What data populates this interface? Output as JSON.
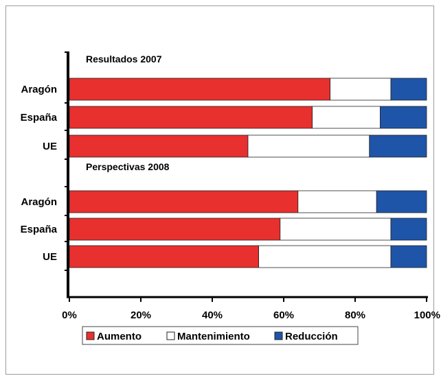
{
  "chart_data": {
    "type": "bar",
    "orientation": "horizontal",
    "stacked": "percent",
    "groups": [
      {
        "title": "Resultados 2007",
        "categories": [
          "Aragón",
          "España",
          "UE"
        ],
        "series": [
          {
            "name": "Aumento",
            "values": [
              73,
              68,
              50
            ]
          },
          {
            "name": "Mantenimiento",
            "values": [
              17,
              19,
              34
            ]
          },
          {
            "name": "Reducción",
            "values": [
              10,
              13,
              16
            ]
          }
        ]
      },
      {
        "title": "Perspectivas  2008",
        "categories": [
          "Aragón",
          "España",
          "UE"
        ],
        "series": [
          {
            "name": "Aumento",
            "values": [
              64,
              59,
              53
            ]
          },
          {
            "name": "Mantenimiento",
            "values": [
              22,
              31,
              37
            ]
          },
          {
            "name": "Reducción",
            "values": [
              14,
              10,
              10
            ]
          }
        ]
      }
    ],
    "xticks": [
      "0%",
      "20%",
      "40%",
      "60%",
      "80%",
      "100%"
    ],
    "xlim": [
      0,
      100
    ],
    "legend": {
      "position": "bottom",
      "entries": [
        {
          "name": "Aumento",
          "color": "#e8302f"
        },
        {
          "name": "Mantenimiento",
          "color": "#ffffff"
        },
        {
          "name": "Reducción",
          "color": "#1f55a8"
        }
      ]
    },
    "grid": false
  }
}
